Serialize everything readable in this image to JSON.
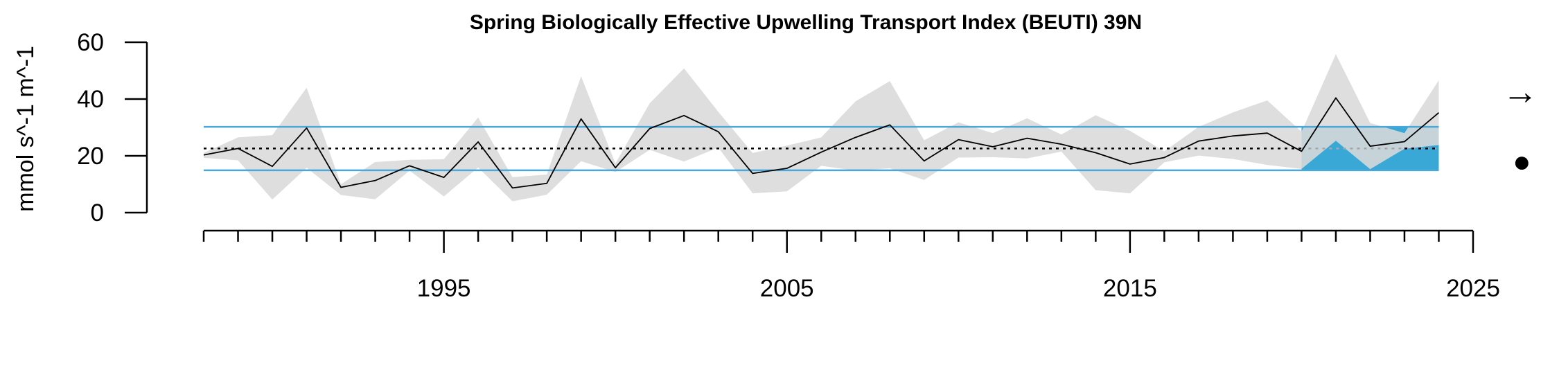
{
  "chart_data": {
    "type": "line",
    "title": "Spring Biologically Effective Upwelling Transport Index (BEUTI) 39N",
    "ylabel": "mmol s^-1 m^-1",
    "xlabel": "",
    "xlim": [
      1988,
      2025
    ],
    "ylim": [
      0,
      60
    ],
    "yticks": [
      0,
      20,
      40,
      60
    ],
    "xticks_major": [
      1995,
      2005,
      2015,
      2025
    ],
    "x": [
      1988,
      1989,
      1990,
      1991,
      1992,
      1993,
      1994,
      1995,
      1996,
      1997,
      1998,
      1999,
      2000,
      2001,
      2002,
      2003,
      2004,
      2005,
      2006,
      2007,
      2008,
      2009,
      2010,
      2011,
      2012,
      2013,
      2014,
      2015,
      2016,
      2017,
      2018,
      2019,
      2020,
      2021,
      2022,
      2023,
      2024
    ],
    "series": [
      {
        "values": [
          20.3,
          22.6,
          16.3,
          29.8,
          8.9,
          11.3,
          16.5,
          12.4,
          24.9,
          8.7,
          10.3,
          33.0,
          15.8,
          29.6,
          34.2,
          28.5,
          13.8,
          15.6,
          21.3,
          26.5,
          30.9,
          18.2,
          25.7,
          23.2,
          26.2,
          24.1,
          21.1,
          17.1,
          19.4,
          25.2,
          27.0,
          28.0,
          21.6,
          40.4,
          23.4,
          25.0,
          35.2
        ],
        "upper": [
          21.0,
          26.5,
          27.3,
          44.0,
          10.0,
          17.8,
          18.6,
          18.8,
          33.5,
          12.5,
          13.4,
          48.0,
          17.3,
          38.5,
          50.8,
          35.5,
          21.0,
          23.6,
          26.5,
          39.2,
          46.3,
          25.5,
          31.8,
          28.0,
          33.2,
          27.5,
          34.3,
          28.8,
          21.6,
          30.2,
          35.3,
          39.5,
          28.5,
          55.8,
          31.6,
          28.0,
          46.6
        ],
        "lower": [
          19.3,
          18.4,
          4.6,
          15.8,
          6.2,
          4.7,
          14.8,
          5.7,
          15.9,
          4.0,
          6.3,
          18.1,
          14.3,
          22.1,
          18.0,
          22.9,
          6.8,
          7.5,
          16.5,
          14.8,
          15.6,
          11.5,
          19.4,
          19.5,
          19.1,
          21.5,
          7.9,
          6.8,
          17.7,
          20.1,
          18.9,
          16.8,
          15.4,
          25.3,
          15.3,
          22.5,
          23.8
        ]
      }
    ],
    "mean": 22.6,
    "upper_sd": 30.2,
    "lower_sd": 14.9,
    "recent_window": [
      2020,
      2024
    ],
    "trend_symbol": "→",
    "mean_symbol": "●",
    "colors": {
      "band": "#d9d9d9",
      "sd_line": "#4aa8d8",
      "recent_fill": "#3aa8d6",
      "series_line": "#000000",
      "mean_line": "#000000",
      "recent_mean_line": "#a6a6a6"
    }
  }
}
